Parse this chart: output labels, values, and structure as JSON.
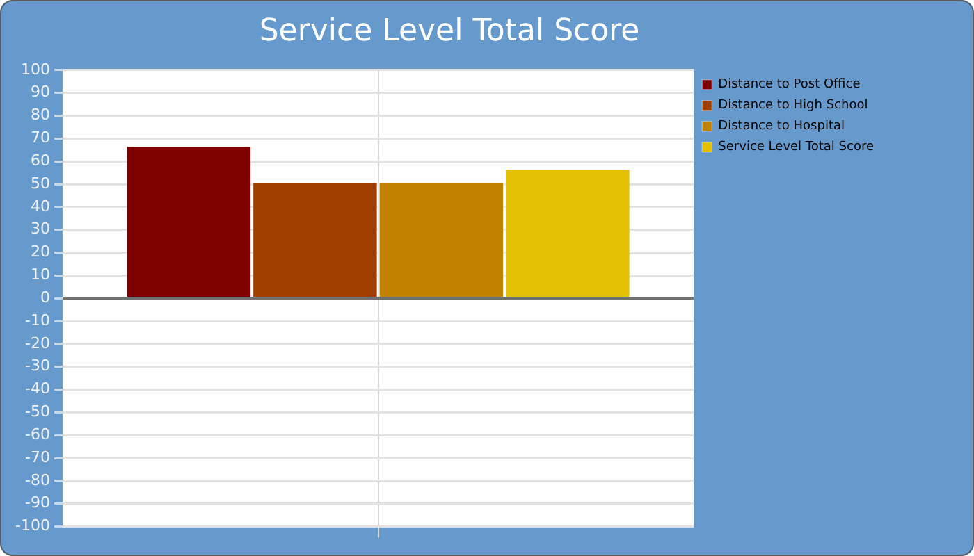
{
  "chart_data": {
    "type": "bar",
    "title": "Service Level Total Score",
    "categories": [
      null
    ],
    "series": [
      {
        "name": "Distance to Post Office",
        "color": "#800000",
        "values": [
          67
        ]
      },
      {
        "name": "Distance to High School",
        "color": "#a04000",
        "values": [
          51
        ]
      },
      {
        "name": "Distance to Hospital",
        "color": "#c08000",
        "values": [
          51
        ]
      },
      {
        "name": "Service Level Total Score",
        "color": "#e0c000",
        "values": [
          57
        ]
      }
    ],
    "ylim": [
      -100,
      100
    ],
    "yticks": [
      -100,
      -90,
      -80,
      -70,
      -60,
      -50,
      -40,
      -30,
      -20,
      -10,
      0,
      10,
      20,
      30,
      40,
      50,
      60,
      70,
      80,
      90,
      100
    ],
    "grid": true,
    "legend": "top right"
  }
}
